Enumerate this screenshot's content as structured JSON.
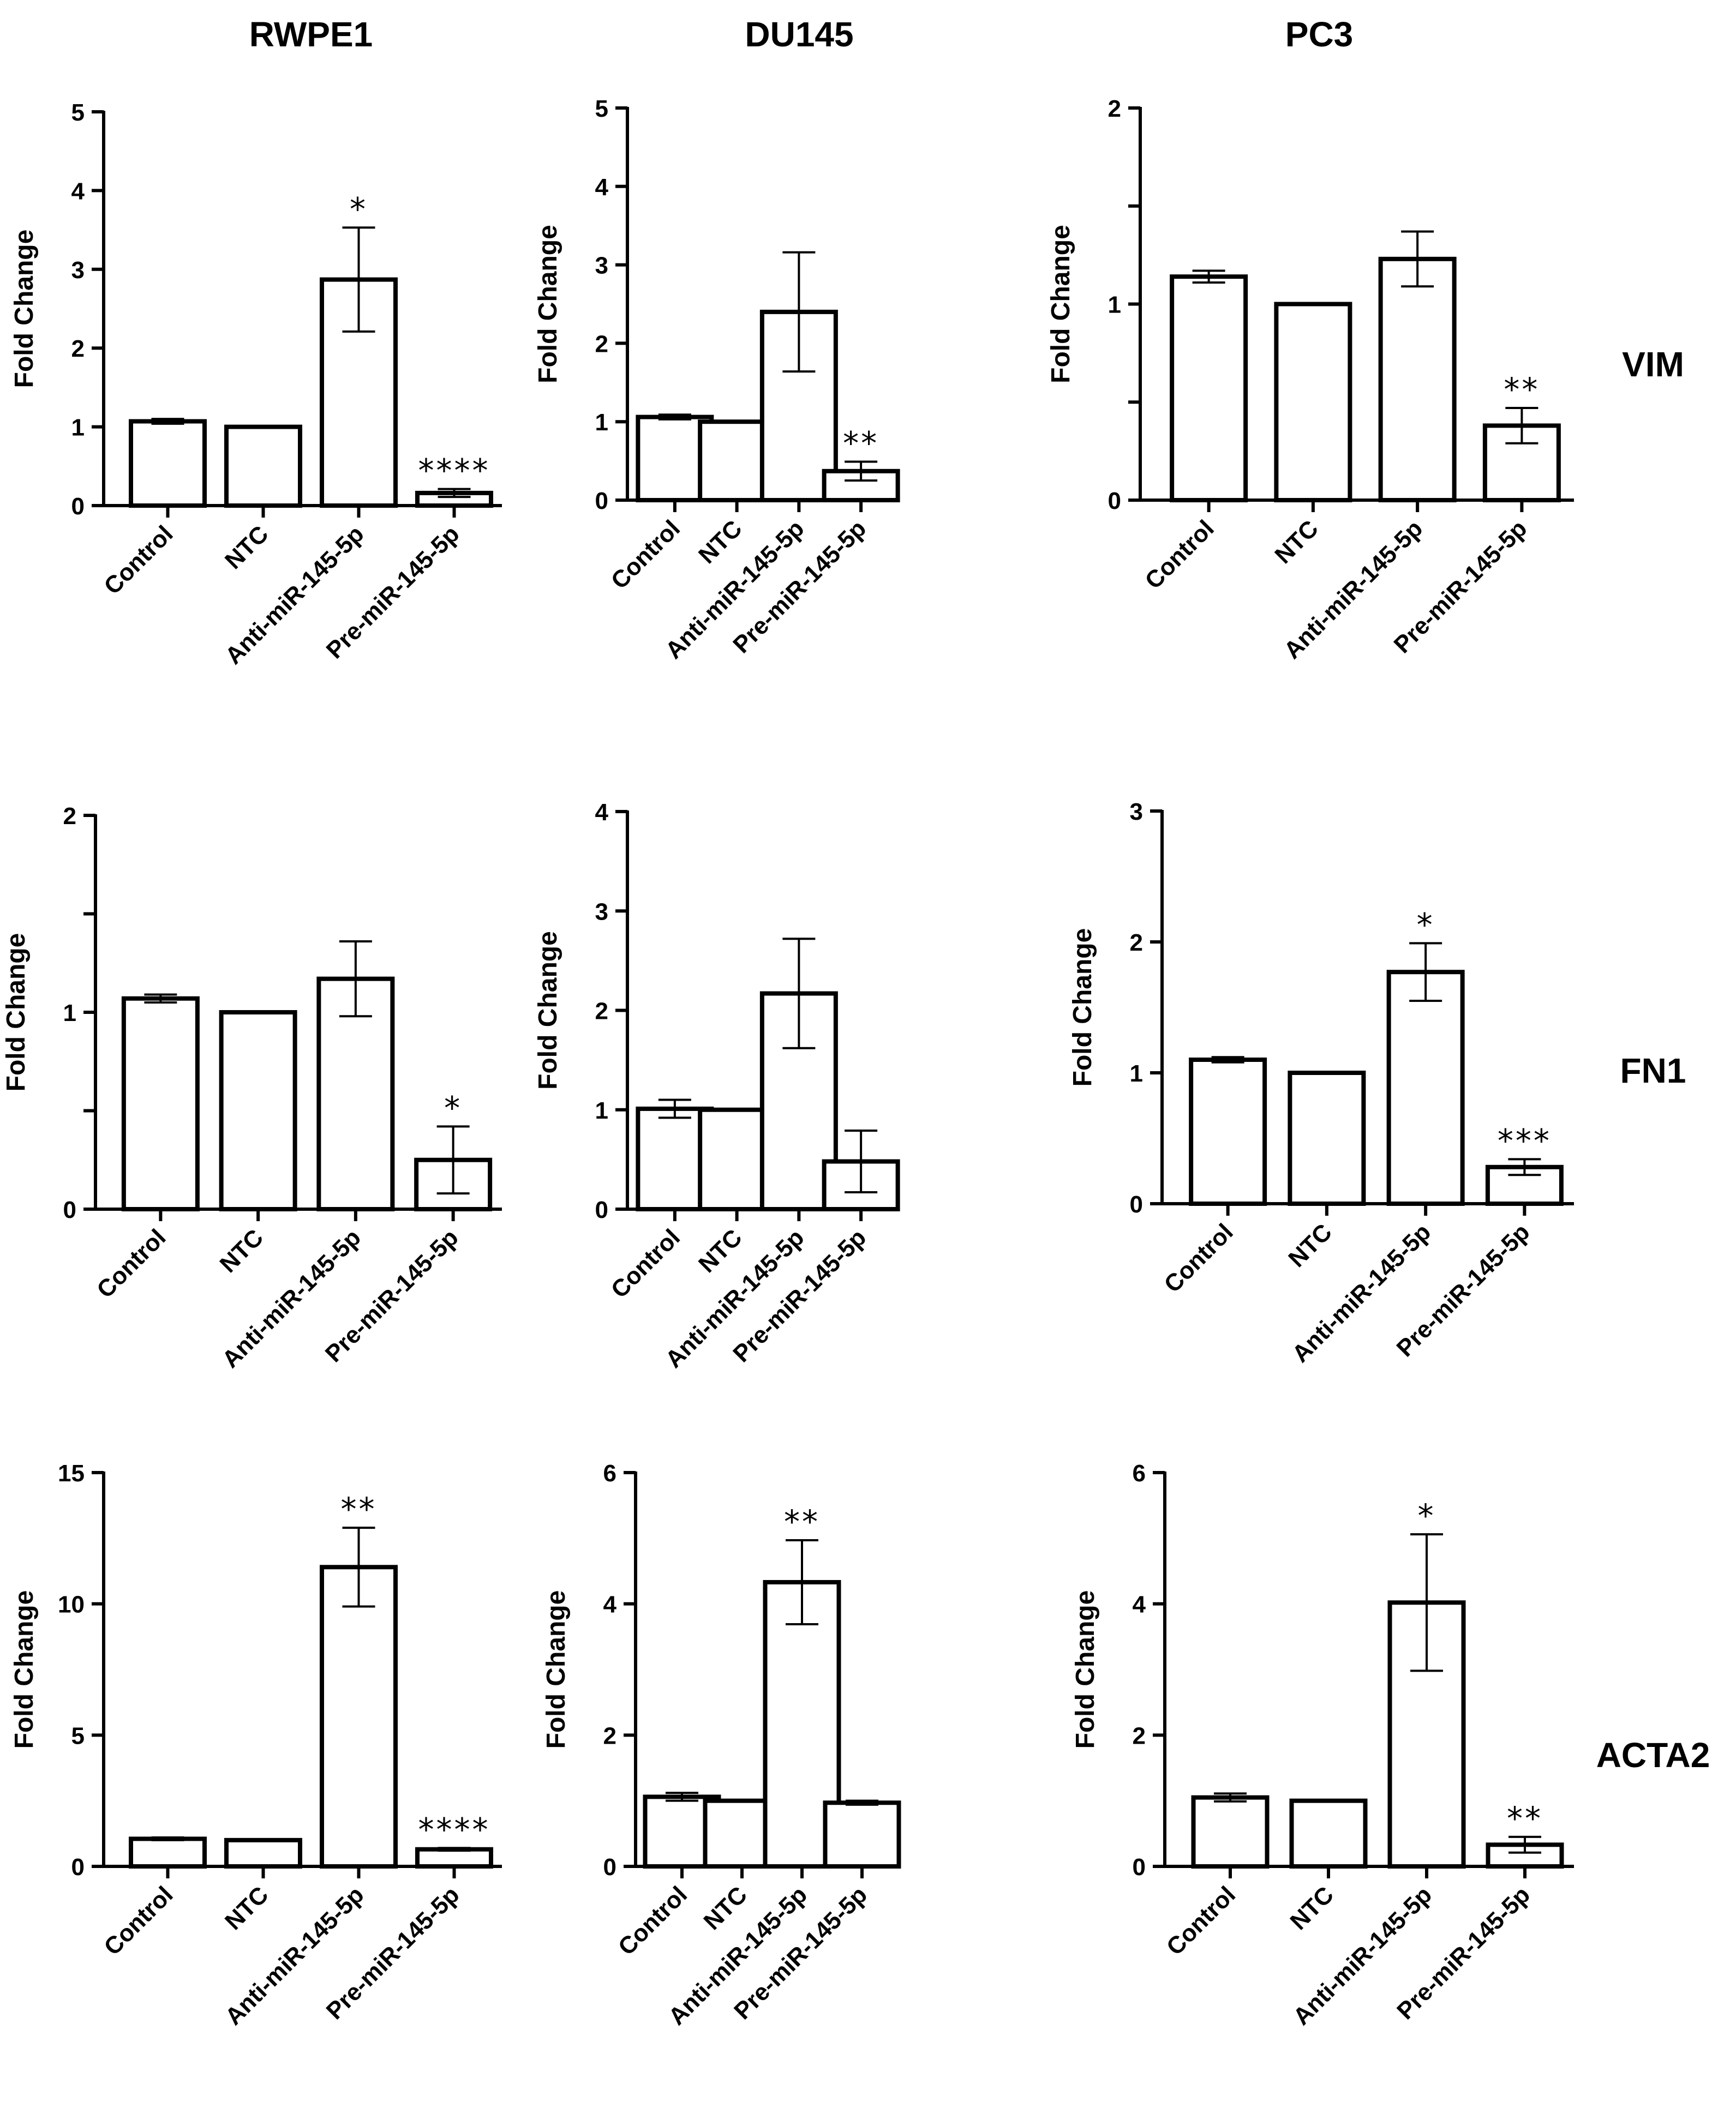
{
  "figure": {
    "columns": [
      "RWPE1",
      "DU145",
      "PC3"
    ],
    "rows": [
      "VIM",
      "FN1",
      "ACTA2"
    ]
  },
  "chart_data": [
    {
      "type": "bar",
      "cell_line": "RWPE1",
      "gene": "VIM",
      "ylabel": "Fold Change",
      "categories": [
        "Control",
        "NTC",
        "Anti-miR-145-5p",
        "Pre-miR-145-5p"
      ],
      "values": [
        1.07,
        1.0,
        2.87,
        0.16
      ],
      "errors": [
        0.03,
        0,
        0.66,
        0.05
      ],
      "significance": [
        "",
        "",
        "*",
        "****"
      ],
      "ylim": [
        0,
        5
      ],
      "yticks": [
        "0",
        "1",
        "2",
        "3",
        "4",
        "5"
      ]
    },
    {
      "type": "bar",
      "cell_line": "DU145",
      "gene": "VIM",
      "ylabel": "Fold Change",
      "categories": [
        "Control",
        "NTC",
        "Anti-miR-145-5p",
        "Pre-miR-145-5p"
      ],
      "values": [
        1.06,
        1.0,
        2.4,
        0.37
      ],
      "errors": [
        0.03,
        0,
        0.76,
        0.12
      ],
      "significance": [
        "",
        "",
        "",
        "**"
      ],
      "ylim": [
        0,
        5
      ],
      "yticks": [
        "0",
        "1",
        "2",
        "3",
        "4",
        "5"
      ]
    },
    {
      "type": "bar",
      "cell_line": "PC3",
      "gene": "VIM",
      "ylabel": "Fold Change",
      "categories": [
        "Control",
        "NTC",
        "Anti-miR-145-5p",
        "Pre-miR-145-5p"
      ],
      "values": [
        1.14,
        1.0,
        1.23,
        0.38
      ],
      "errors": [
        0.03,
        0,
        0.14,
        0.09
      ],
      "significance": [
        "",
        "",
        "",
        "**"
      ],
      "ylim": [
        0,
        2
      ],
      "yticks": [
        "0",
        "",
        "1",
        "",
        "2"
      ]
    },
    {
      "type": "bar",
      "cell_line": "RWPE1",
      "gene": "FN1",
      "ylabel": "Fold Change",
      "categories": [
        "Control",
        "NTC",
        "Anti-miR-145-5p",
        "Pre-miR-145-5p"
      ],
      "values": [
        1.07,
        1.0,
        1.17,
        0.25
      ],
      "errors": [
        0.02,
        0,
        0.19,
        0.17
      ],
      "significance": [
        "",
        "",
        "",
        "*"
      ],
      "ylim": [
        0,
        2
      ],
      "yticks": [
        "0",
        "",
        "1",
        "",
        "2"
      ]
    },
    {
      "type": "bar",
      "cell_line": "DU145",
      "gene": "FN1",
      "ylabel": "Fold Change",
      "categories": [
        "Control",
        "NTC",
        "Anti-miR-145-5p",
        "Pre-miR-145-5p"
      ],
      "values": [
        1.01,
        1.0,
        2.17,
        0.48
      ],
      "errors": [
        0.09,
        0,
        0.55,
        0.31
      ],
      "significance": [
        "",
        "",
        "",
        ""
      ],
      "ylim": [
        0,
        4
      ],
      "yticks": [
        "0",
        "1",
        "2",
        "3",
        "4"
      ]
    },
    {
      "type": "bar",
      "cell_line": "PC3",
      "gene": "FN1",
      "ylabel": "Fold Change",
      "categories": [
        "Control",
        "NTC",
        "Anti-miR-145-5p",
        "Pre-miR-145-5p"
      ],
      "values": [
        1.1,
        1.0,
        1.77,
        0.28
      ],
      "errors": [
        0.02,
        0,
        0.22,
        0.06
      ],
      "significance": [
        "",
        "",
        "*",
        "***"
      ],
      "ylim": [
        0,
        3
      ],
      "yticks": [
        "0",
        "1",
        "2",
        "3"
      ]
    },
    {
      "type": "bar",
      "cell_line": "RWPE1",
      "gene": "ACTA2",
      "ylabel": "Fold Change",
      "categories": [
        "Control",
        "NTC",
        "Anti-miR-145-5p",
        "Pre-miR-145-5p"
      ],
      "values": [
        1.05,
        1.0,
        11.4,
        0.65
      ],
      "errors": [
        0.05,
        0,
        1.5,
        0.05
      ],
      "significance": [
        "",
        "",
        "**",
        "****"
      ],
      "ylim": [
        0,
        15
      ],
      "yticks": [
        "0",
        "5",
        "10",
        "15"
      ]
    },
    {
      "type": "bar",
      "cell_line": "DU145",
      "gene": "ACTA2",
      "ylabel": "Fold Change",
      "categories": [
        "Control",
        "NTC",
        "Anti-miR-145-5p",
        "Pre-miR-145-5p"
      ],
      "values": [
        1.06,
        1.0,
        4.33,
        0.97
      ],
      "errors": [
        0.06,
        0,
        0.64,
        0.03
      ],
      "significance": [
        "",
        "",
        "**",
        ""
      ],
      "ylim": [
        0,
        6
      ],
      "yticks": [
        "0",
        "2",
        "4",
        "6"
      ]
    },
    {
      "type": "bar",
      "cell_line": "PC3",
      "gene": "ACTA2",
      "ylabel": "Fold Change",
      "categories": [
        "Control",
        "NTC",
        "Anti-miR-145-5p",
        "Pre-miR-145-5p"
      ],
      "values": [
        1.05,
        1.0,
        4.02,
        0.33
      ],
      "errors": [
        0.06,
        0,
        1.04,
        0.12
      ],
      "significance": [
        "",
        "",
        "*",
        "**"
      ],
      "ylim": [
        0,
        6
      ],
      "yticks": [
        "0",
        "2",
        "4",
        "6"
      ]
    }
  ]
}
